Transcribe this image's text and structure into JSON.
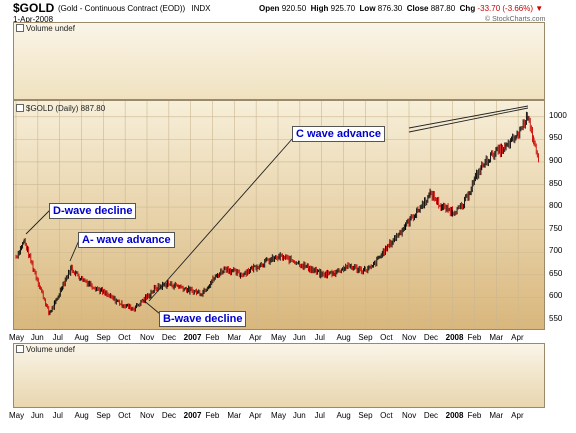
{
  "header": {
    "symbol": "$GOLD",
    "name": "(Gold - Continuous Contract (EOD))",
    "exchange": "INDX",
    "date": "1-Apr-2008",
    "open_label": "Open",
    "open": "920.50",
    "high_label": "High",
    "high": "925.70",
    "low_label": "Low",
    "low": "876.30",
    "close_label": "Close",
    "close": "887.80",
    "chg_label": "Chg",
    "chg": "-33.70 (-3.66%)",
    "watermark": "© StockCharts.com"
  },
  "top_panel": {
    "label": "Volume undef"
  },
  "bottom_panel": {
    "label": "Volume undef"
  },
  "price_panel": {
    "label": "$GOLD (Daily) 887.80"
  },
  "colors": {
    "background_top": "#f7efd9",
    "background_bottom": "#d9b77c",
    "up": "#000000",
    "down": "#cc0000",
    "annotation_text": "#0000cc"
  },
  "annotations": {
    "d_wave": "D-wave decline",
    "a_wave": "A- wave advance",
    "b_wave": "B-wave decline",
    "c_wave": "C wave advance"
  },
  "chart_data": {
    "type": "line",
    "title": "$GOLD (Daily) 887.80",
    "xlabel": "",
    "ylabel": "",
    "ylim": [
      530,
      1035
    ],
    "y_ticks": [
      550,
      600,
      650,
      700,
      750,
      800,
      850,
      900,
      950,
      1000
    ],
    "x_tick_labels": [
      "May",
      "Jun",
      "Jul",
      "Aug",
      "Sep",
      "Oct",
      "Nov",
      "Dec",
      "2007",
      "Feb",
      "Mar",
      "Apr",
      "May",
      "Jun",
      "Jul",
      "Aug",
      "Sep",
      "Oct",
      "Nov",
      "Dec",
      "2008",
      "Feb",
      "Mar",
      "Apr"
    ],
    "grid": true,
    "series": [
      {
        "x": [
          "2006-05-01",
          "2006-05-12",
          "2006-05-25",
          "2006-06-05",
          "2006-06-14",
          "2006-06-22",
          "2006-07-03",
          "2006-07-14",
          "2006-07-25",
          "2006-08-08",
          "2006-08-22",
          "2006-09-05",
          "2006-09-20",
          "2006-10-05",
          "2006-10-20",
          "2006-11-03",
          "2006-11-20",
          "2006-12-05",
          "2006-12-20",
          "2007-01-05",
          "2007-01-20",
          "2007-02-05",
          "2007-02-26",
          "2007-03-14",
          "2007-04-02",
          "2007-04-20",
          "2007-05-10",
          "2007-05-28",
          "2007-06-15",
          "2007-07-02",
          "2007-07-20",
          "2007-08-08",
          "2007-08-20",
          "2007-09-05",
          "2007-09-20",
          "2007-10-05",
          "2007-10-20",
          "2007-11-08",
          "2007-11-22",
          "2007-12-07",
          "2007-12-20",
          "2008-01-05",
          "2008-01-15",
          "2008-01-31",
          "2008-02-15",
          "2008-03-03",
          "2008-03-17",
          "2008-03-25",
          "2008-04-01"
        ],
        "values": [
          690,
          725,
          660,
          610,
          565,
          585,
          630,
          665,
          645,
          630,
          615,
          600,
          585,
          575,
          595,
          620,
          630,
          625,
          615,
          610,
          640,
          665,
          650,
          665,
          680,
          690,
          680,
          665,
          650,
          655,
          670,
          660,
          665,
          700,
          730,
          760,
          790,
          830,
          800,
          790,
          800,
          860,
          890,
          920,
          930,
          960,
          1005,
          940,
          888
        ]
      }
    ]
  }
}
